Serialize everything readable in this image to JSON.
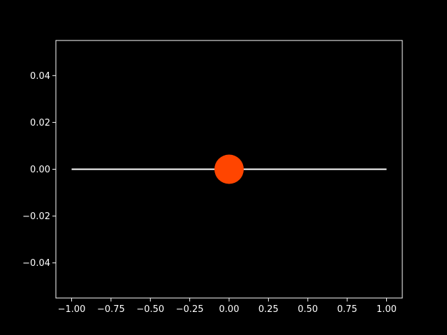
{
  "chart_data": {
    "type": "line",
    "title": "",
    "xlabel": "",
    "ylabel": "",
    "xlim": [
      -1.1,
      1.1
    ],
    "ylim": [
      -0.055,
      0.055
    ],
    "grid": false,
    "background": "#000000",
    "foreground": "#ffffff",
    "x_ticks": [
      -1.0,
      -0.75,
      -0.5,
      -0.25,
      0.0,
      0.25,
      0.5,
      0.75,
      1.0
    ],
    "x_tick_labels": [
      "−1.00",
      "−0.75",
      "−0.50",
      "−0.25",
      "0.00",
      "0.25",
      "0.50",
      "0.75",
      "1.00"
    ],
    "y_ticks": [
      -0.04,
      -0.02,
      0.0,
      0.02,
      0.04
    ],
    "y_tick_labels": [
      "−0.04",
      "−0.02",
      "0.00",
      "0.02",
      "0.04"
    ],
    "series": [
      {
        "type": "line",
        "color": "#ffffff",
        "x": [
          -1.0,
          1.0
        ],
        "y": [
          0.0,
          0.0
        ]
      },
      {
        "type": "scatter",
        "color": "#ff4500",
        "x": [
          0.0
        ],
        "y": [
          0.0
        ]
      }
    ]
  }
}
